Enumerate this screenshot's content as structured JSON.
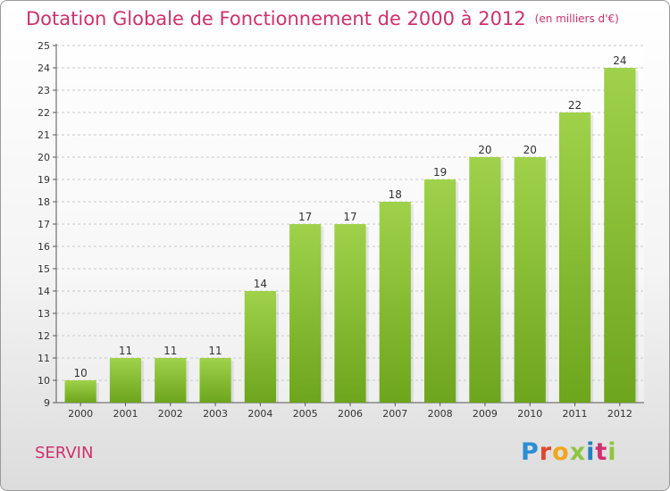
{
  "header": {
    "title": "Dotation Globale de Fonctionnement de 2000 à 2012",
    "unit_note": "(en milliers d'€)"
  },
  "footer": {
    "town": "SERVIN",
    "logo_text": "Proxiti",
    "logo_colors": [
      "#2a8ed4",
      "#e2452c",
      "#f3a51d",
      "#8dc63f",
      "#1e7fc8",
      "#d0306d",
      "#8dc63f"
    ]
  },
  "colors": {
    "bar_light": "#9fd24a",
    "bar_dark": "#6da51c",
    "title": "#d0306d"
  },
  "chart_data": {
    "type": "bar",
    "categories": [
      "2000",
      "2001",
      "2002",
      "2003",
      "2004",
      "2005",
      "2006",
      "2007",
      "2008",
      "2009",
      "2010",
      "2011",
      "2012"
    ],
    "values": [
      10,
      11,
      11,
      11,
      14,
      17,
      17,
      18,
      19,
      20,
      20,
      22,
      24
    ],
    "title": "Dotation Globale de Fonctionnement de 2000 à 2012",
    "subtitle": "(en milliers d'€)",
    "ylim": [
      9,
      25
    ],
    "yticks": [
      9,
      10,
      11,
      12,
      13,
      14,
      15,
      16,
      17,
      18,
      19,
      20,
      21,
      22,
      23,
      24,
      25
    ],
    "grid": "horizontal dashed",
    "data_labels": true
  }
}
